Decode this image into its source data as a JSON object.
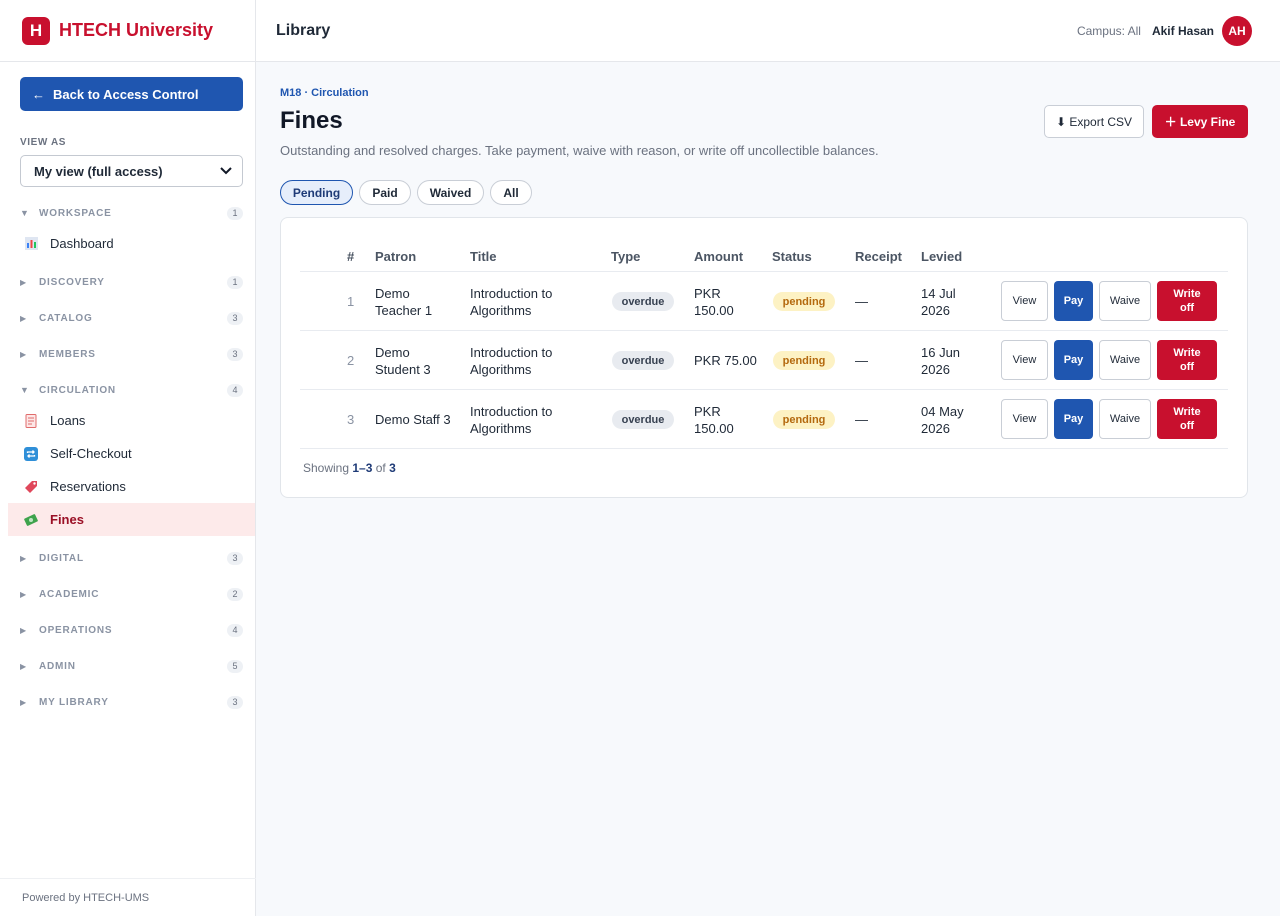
{
  "brand": {
    "logo_letter": "H",
    "name": "HTECH University"
  },
  "sidebar": {
    "back_label": "Back to Access Control",
    "back_arrow": "←",
    "view_as_label": "VIEW AS",
    "view_as_value": "My view (full access)",
    "sections": [
      {
        "label": "WORKSPACE",
        "count": "1",
        "open": true
      },
      {
        "label": "DISCOVERY",
        "count": "1",
        "open": false
      },
      {
        "label": "CATALOG",
        "count": "3",
        "open": false
      },
      {
        "label": "MEMBERS",
        "count": "3",
        "open": false
      },
      {
        "label": "CIRCULATION",
        "count": "4",
        "open": true
      },
      {
        "label": "DIGITAL",
        "count": "3",
        "open": false
      },
      {
        "label": "ACADEMIC",
        "count": "2",
        "open": false
      },
      {
        "label": "OPERATIONS",
        "count": "4",
        "open": false
      },
      {
        "label": "ADMIN",
        "count": "5",
        "open": false
      },
      {
        "label": "MY LIBRARY",
        "count": "3",
        "open": false
      }
    ],
    "items": [
      {
        "label": "Dashboard",
        "icon": "bar-chart-icon"
      },
      {
        "label": "Loans",
        "icon": "receipt-icon"
      },
      {
        "label": "Self-Checkout",
        "icon": "repeat-icon"
      },
      {
        "label": "Reservations",
        "icon": "tag-icon"
      },
      {
        "label": "Fines",
        "icon": "money-icon",
        "active": true
      }
    ],
    "powered_by": "Powered by HTECH-UMS"
  },
  "topbar": {
    "title": "Library",
    "campus": "Campus: All",
    "user_name": "Akif Hasan",
    "avatar_initials": "AH"
  },
  "page": {
    "breadcrumb": "M18 · Circulation",
    "title": "Fines",
    "subtitle": "Outstanding and resolved charges. Take payment, waive with reason, or write off uncollectible balances.",
    "export_label": "⬇ Export CSV",
    "levy_label": "＋ Levy Fine"
  },
  "filters": [
    {
      "label": "Pending",
      "active": true
    },
    {
      "label": "Paid",
      "active": false
    },
    {
      "label": "Waived",
      "active": false
    },
    {
      "label": "All",
      "active": false
    }
  ],
  "table": {
    "headers": [
      "#",
      "Patron",
      "Title",
      "Type",
      "Amount",
      "Status",
      "Receipt",
      "Levied"
    ],
    "rows": [
      {
        "num": "1",
        "patron": [
          "Demo",
          "Teacher 1"
        ],
        "title": [
          "Introduction to",
          "Algorithms"
        ],
        "type": "overdue",
        "amount": [
          "PKR",
          "150.00"
        ],
        "status": "pending",
        "receipt": "—",
        "levied": [
          "14 Jul",
          "2026"
        ]
      },
      {
        "num": "2",
        "patron": [
          "Demo",
          "Student 3"
        ],
        "title": [
          "Introduction to",
          "Algorithms"
        ],
        "type": "overdue",
        "amount": [
          "PKR 75.00"
        ],
        "status": "pending",
        "receipt": "—",
        "levied": [
          "16 Jun",
          "2026"
        ]
      },
      {
        "num": "3",
        "patron": [
          "Demo Staff 3"
        ],
        "title": [
          "Introduction to",
          "Algorithms"
        ],
        "type": "overdue",
        "amount": [
          "PKR",
          "150.00"
        ],
        "status": "pending",
        "receipt": "—",
        "levied": [
          "04 May",
          "2026"
        ]
      }
    ],
    "actions": {
      "view": "View",
      "pay": "Pay",
      "waive": "Waive",
      "writeoff": [
        "Write",
        "off"
      ]
    },
    "footer": {
      "prefix": "Showing ",
      "range": "1–3",
      "of": " of ",
      "total": "3"
    }
  },
  "colors": {
    "brand_red": "#c8102e",
    "primary_blue": "#1f56b0",
    "pending_bg": "#fdf2c4",
    "active_nav_bg": "#fdeaea"
  }
}
